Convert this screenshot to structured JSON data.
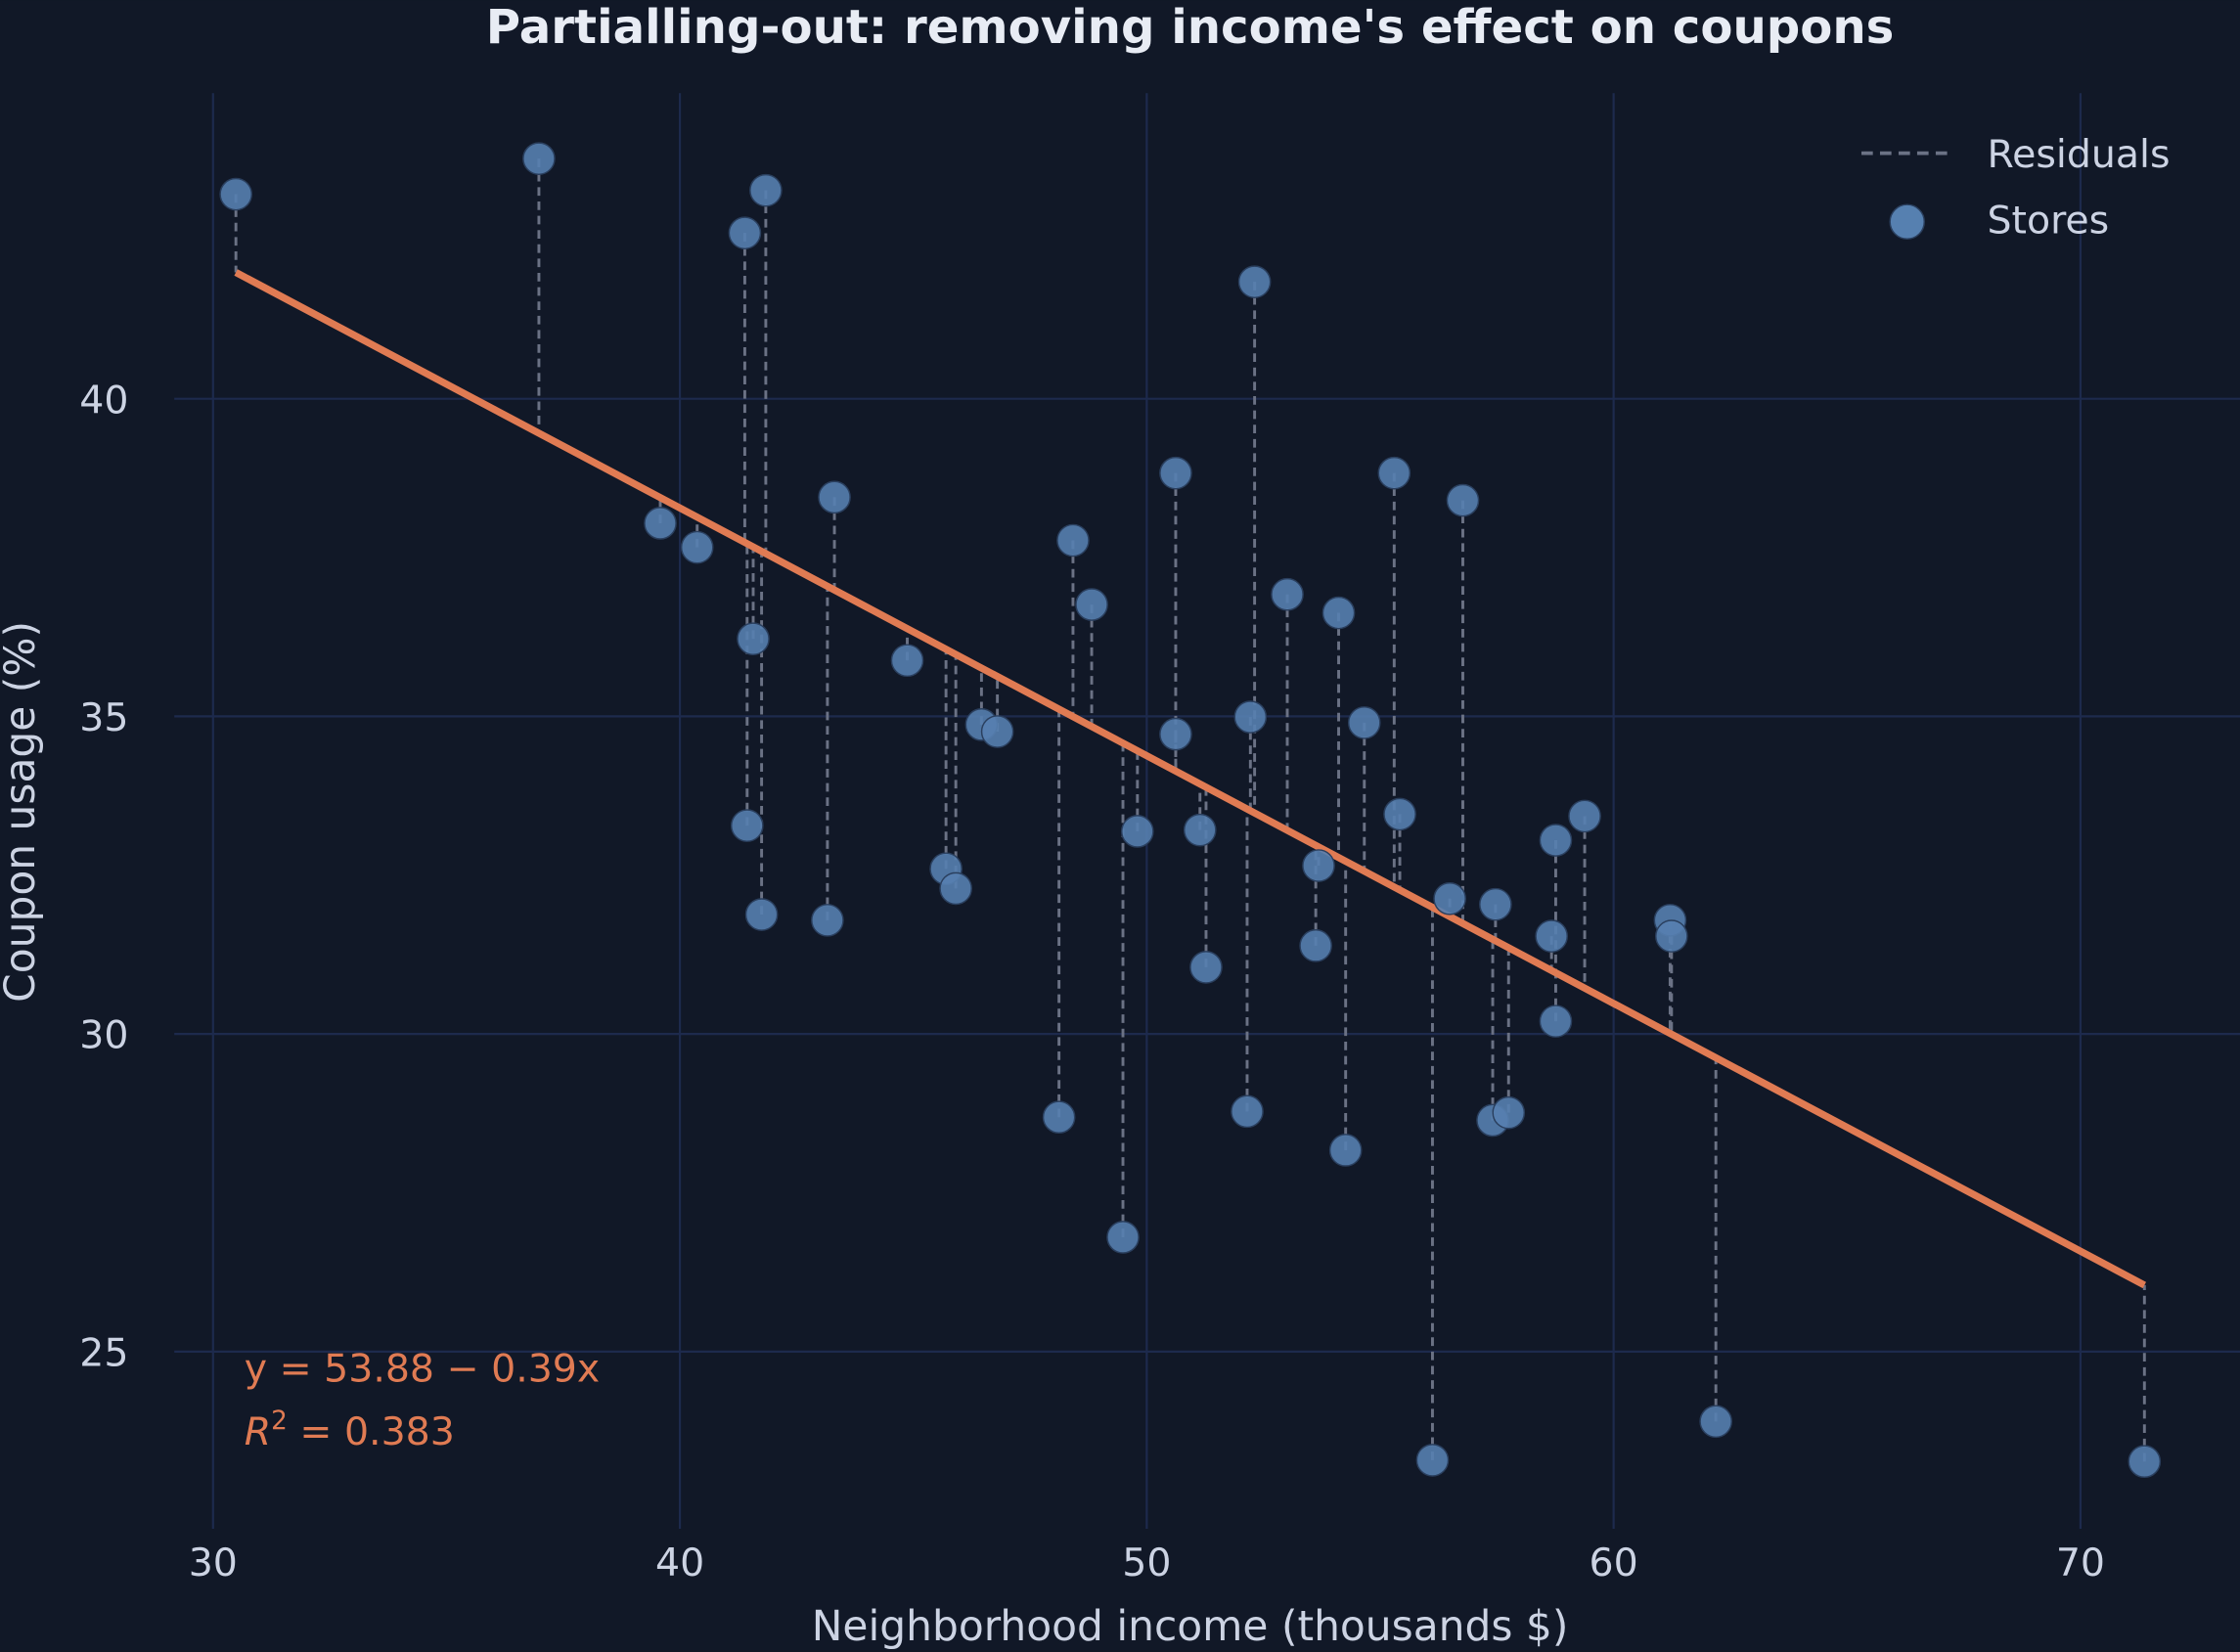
{
  "chart_data": {
    "type": "scatter",
    "title": "Partialling-out: removing income's effect on coupons",
    "xlabel": "Neighborhood income (thousands $)",
    "ylabel": "Coupon usage (%)",
    "xlim": [
      29.17,
      72.56
    ],
    "ylim": [
      22.21,
      44.81
    ],
    "xticks": [
      "30",
      "40",
      "50",
      "60",
      "70"
    ],
    "yticks": [
      "25",
      "30",
      "35",
      "40"
    ],
    "grid": true,
    "legend_placement": "top-right",
    "legend": [
      {
        "label": "Residuals",
        "marker": "dashed-line"
      },
      {
        "label": "Stores",
        "marker": "circle"
      }
    ],
    "fit": {
      "intercept": 53.88,
      "slope": -0.39,
      "x_range": [
        30.49,
        71.37
      ]
    },
    "annotation": {
      "equation": "y = 53.88 − 0.39x",
      "r2_label": "R",
      "r2_sup": "2",
      "r2_value": " = 0.383"
    },
    "colors": {
      "background": "#111827",
      "grid": "#1d2a4d",
      "points": "#5680b0",
      "fit_line": "#e07b53",
      "residuals": "#6b7285",
      "text": "#ccd3e3"
    },
    "points": [
      [
        30.49,
        43.22
      ],
      [
        36.98,
        43.78
      ],
      [
        41.39,
        42.61
      ],
      [
        41.84,
        43.28
      ],
      [
        39.58,
        38.04
      ],
      [
        40.37,
        37.66
      ],
      [
        41.57,
        36.22
      ],
      [
        41.44,
        33.28
      ],
      [
        41.75,
        31.88
      ],
      [
        43.31,
        38.45
      ],
      [
        43.16,
        31.79
      ],
      [
        44.87,
        35.88
      ],
      [
        45.7,
        32.6
      ],
      [
        45.91,
        32.29
      ],
      [
        46.46,
        34.87
      ],
      [
        46.8,
        34.76
      ],
      [
        48.42,
        37.77
      ],
      [
        48.82,
        36.76
      ],
      [
        48.12,
        28.69
      ],
      [
        49.49,
        26.8
      ],
      [
        49.8,
        33.19
      ],
      [
        50.62,
        38.83
      ],
      [
        50.62,
        34.72
      ],
      [
        51.14,
        33.21
      ],
      [
        51.27,
        31.05
      ],
      [
        52.31,
        41.84
      ],
      [
        52.22,
        34.99
      ],
      [
        52.15,
        28.78
      ],
      [
        53.01,
        36.92
      ],
      [
        53.68,
        32.65
      ],
      [
        53.62,
        31.39
      ],
      [
        54.11,
        36.63
      ],
      [
        54.66,
        34.9
      ],
      [
        54.26,
        28.17
      ],
      [
        55.3,
        38.83
      ],
      [
        55.42,
        33.46
      ],
      [
        56.77,
        38.4
      ],
      [
        56.49,
        32.13
      ],
      [
        56.12,
        23.29
      ],
      [
        57.47,
        32.04
      ],
      [
        57.41,
        28.64
      ],
      [
        57.75,
        28.76
      ],
      [
        58.76,
        33.05
      ],
      [
        58.67,
        31.54
      ],
      [
        58.76,
        30.2
      ],
      [
        59.38,
        33.43
      ],
      [
        61.21,
        31.79
      ],
      [
        61.24,
        31.54
      ],
      [
        62.19,
        23.9
      ],
      [
        71.37,
        23.27
      ]
    ]
  }
}
